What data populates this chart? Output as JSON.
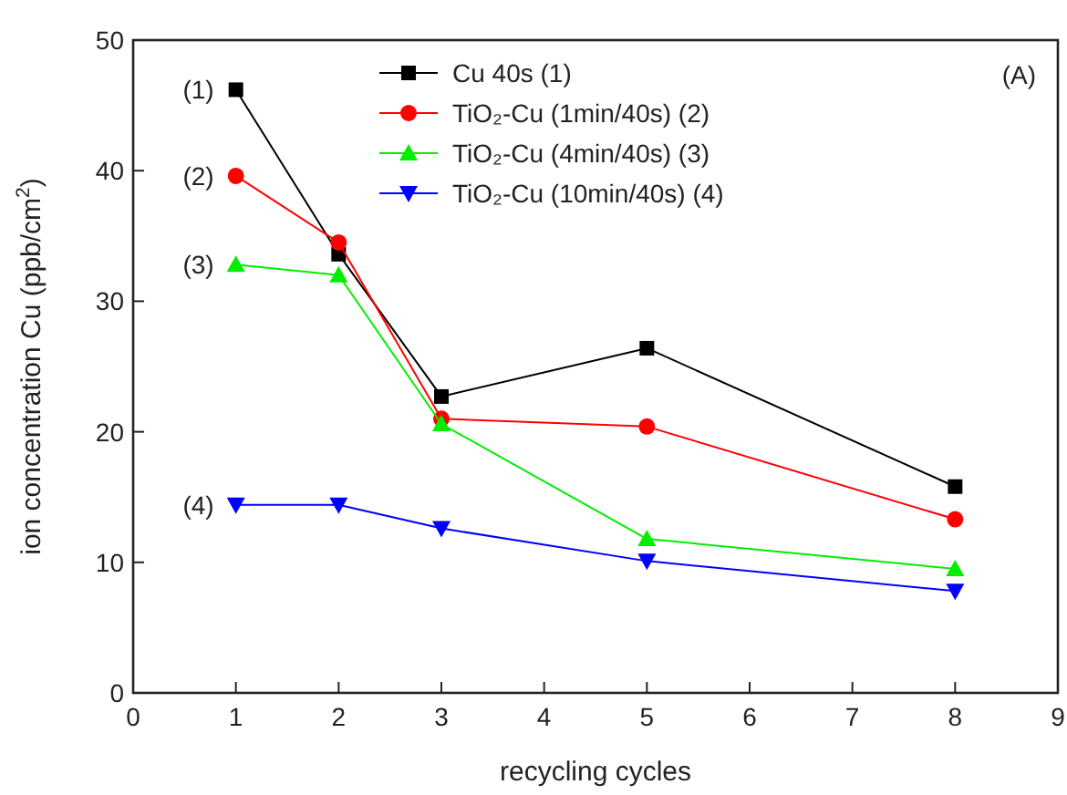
{
  "chart_data": {
    "type": "line",
    "xlabel": "recycling cycles",
    "ylabel": "ion concentration Cu (ppb/cm$^{2}$)",
    "x": [
      1,
      2,
      3,
      5,
      8
    ],
    "xlim": [
      0,
      9
    ],
    "xticks": [
      0,
      1,
      2,
      3,
      4,
      5,
      6,
      7,
      8,
      9
    ],
    "ylim": [
      0,
      50
    ],
    "yticks": [
      0,
      10,
      20,
      30,
      40,
      50
    ],
    "grid": false,
    "legend": "top right",
    "line_style": "solid",
    "series": [
      {
        "name": "Cu 40s (1)",
        "color": "#000000",
        "marker": "square",
        "values": [
          46.2,
          33.6,
          22.7,
          26.4,
          15.8
        ]
      },
      {
        "name": "TiO₂-Cu (1min/40s) (2)",
        "color": "#ff0000",
        "marker": "circle",
        "values": [
          39.6,
          34.5,
          21.0,
          20.4,
          13.3
        ]
      },
      {
        "name": "TiO₂-Cu (4min/40s) (3)",
        "color": "#00ee00",
        "marker": "triangle",
        "values": [
          32.8,
          32.0,
          20.6,
          11.8,
          9.5
        ]
      },
      {
        "name": "TiO₂-Cu (10min/40s) (4)",
        "color": "#0000ff",
        "marker": "triangle-down",
        "values": [
          14.4,
          14.4,
          12.6,
          10.1,
          7.8
        ]
      }
    ],
    "annotations": [
      "(1)",
      "(2)",
      "(3)",
      "(4)",
      "(A)"
    ]
  }
}
